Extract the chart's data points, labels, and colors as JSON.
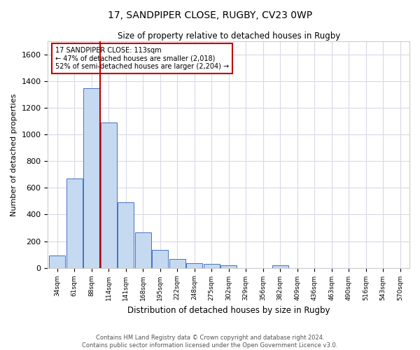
{
  "title1": "17, SANDPIPER CLOSE, RUGBY, CV23 0WP",
  "title2": "Size of property relative to detached houses in Rugby",
  "xlabel": "Distribution of detached houses by size in Rugby",
  "ylabel": "Number of detached properties",
  "footnote": "Contains HM Land Registry data © Crown copyright and database right 2024.\nContains public sector information licensed under the Open Government Licence v3.0.",
  "bins": [
    "34sqm",
    "61sqm",
    "88sqm",
    "114sqm",
    "141sqm",
    "168sqm",
    "195sqm",
    "222sqm",
    "248sqm",
    "275sqm",
    "302sqm",
    "329sqm",
    "356sqm",
    "382sqm",
    "409sqm",
    "436sqm",
    "463sqm",
    "490sqm",
    "516sqm",
    "543sqm",
    "570sqm"
  ],
  "bar_values": [
    90,
    670,
    1350,
    1090,
    490,
    265,
    135,
    65,
    35,
    30,
    18,
    0,
    0,
    18,
    0,
    0,
    0,
    0,
    0,
    0,
    0
  ],
  "property_bin_index": 2,
  "annotation_text": "17 SANDPIPER CLOSE: 113sqm\n← 47% of detached houses are smaller (2,018)\n52% of semi-detached houses are larger (2,204) →",
  "bar_color": "#c5d9f1",
  "bar_edge_color": "#4472c4",
  "vline_color": "#c00000",
  "annotation_box_color": "#c00000",
  "grid_color": "#d9d9e8",
  "background_color": "#ffffff",
  "ylim": [
    0,
    1700
  ],
  "yticks": [
    0,
    200,
    400,
    600,
    800,
    1000,
    1200,
    1400,
    1600
  ]
}
